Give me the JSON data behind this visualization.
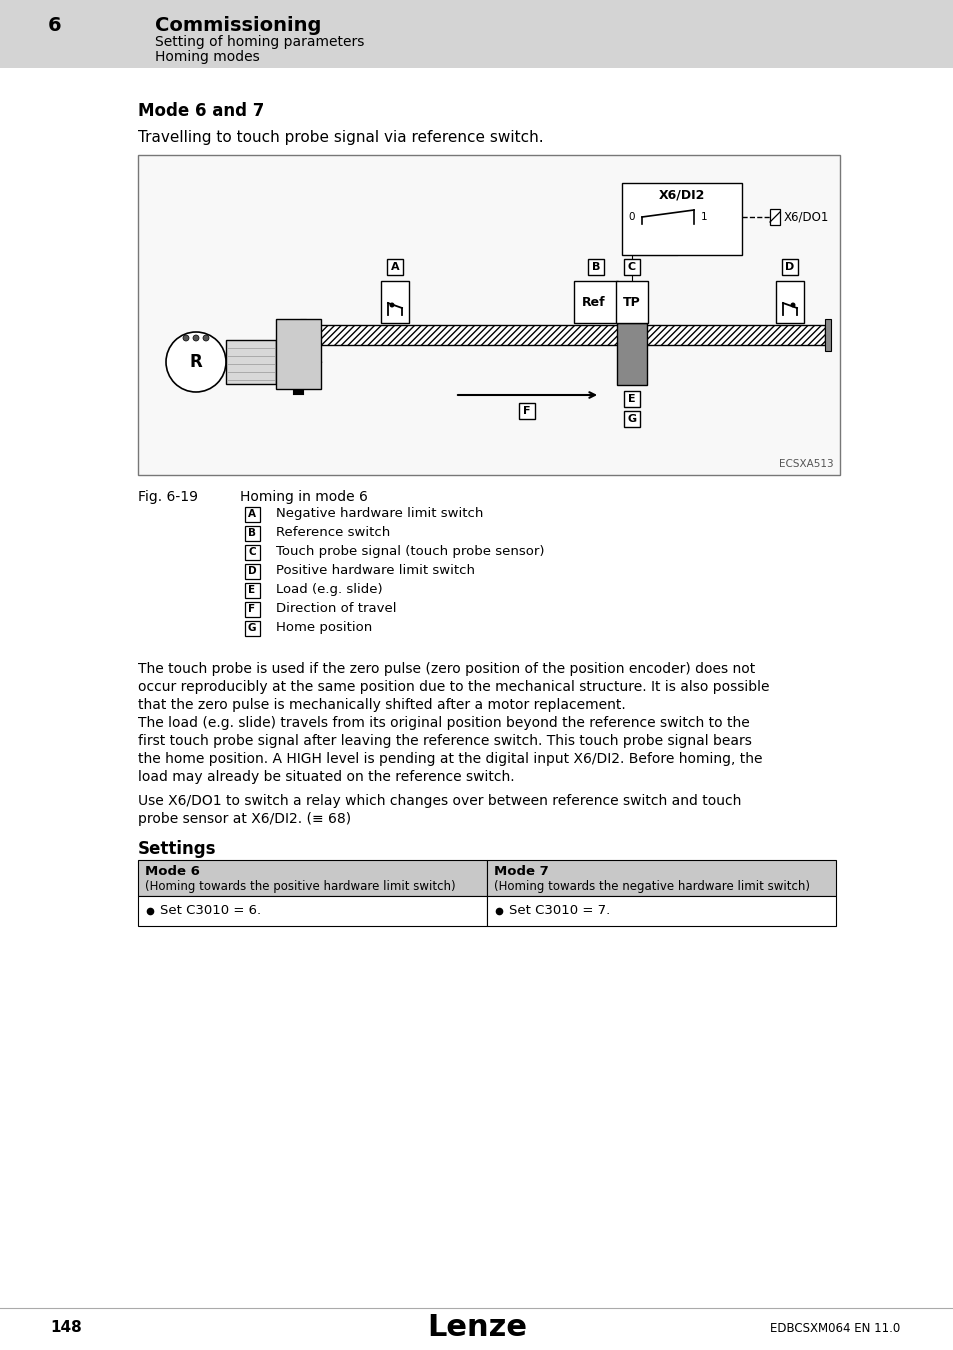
{
  "page_bg": "#ffffff",
  "header_bg": "#d4d4d4",
  "header_number": "6",
  "header_title": "Commissioning",
  "header_sub1": "Setting of homing parameters",
  "header_sub2": "Homing modes",
  "mode_title": "Mode 6 and 7",
  "mode_subtitle": "Travelling to touch probe signal via reference switch.",
  "fig_label": "Fig. 6-19",
  "fig_caption": "Homing in mode 6",
  "legend_items": [
    [
      "A",
      "Negative hardware limit switch"
    ],
    [
      "B",
      "Reference switch"
    ],
    [
      "C",
      "Touch probe signal (touch probe sensor)"
    ],
    [
      "D",
      "Positive hardware limit switch"
    ],
    [
      "E",
      "Load (e.g. slide)"
    ],
    [
      "F",
      "Direction of travel"
    ],
    [
      "G",
      "Home position"
    ]
  ],
  "diagram_label": "ECSXA513",
  "para1": "The touch probe is used if the zero pulse (zero position of the position encoder) does not\noccur reproducibly at the same position due to the mechanical structure. It is also possible\nthat the zero pulse is mechanically shifted after a motor replacement.",
  "para2": "The load (e.g. slide) travels from its original position beyond the reference switch to the\nfirst touch probe signal after leaving the reference switch. This touch probe signal bears\nthe home position. A HIGH level is pending at the digital input X6/DI2. Before homing, the\nload may already be situated on the reference switch.",
  "para3": "Use X6/DO1 to switch a relay which changes over between reference switch and touch\nprobe sensor at X6/DI2. (≡ 68)",
  "settings_title": "Settings",
  "table_col1_header": "Mode 6",
  "table_col1_subheader": "(Homing towards the positive hardware limit switch)",
  "table_col2_header": "Mode 7",
  "table_col2_subheader": "(Homing towards the negative hardware limit switch)",
  "table_col1_item": "Set C3010 = 6.",
  "table_col2_item": "Set C3010 = 7.",
  "footer_page": "148",
  "footer_brand": "Lenze",
  "footer_doc": "EDBCSXM064 EN 11.0"
}
